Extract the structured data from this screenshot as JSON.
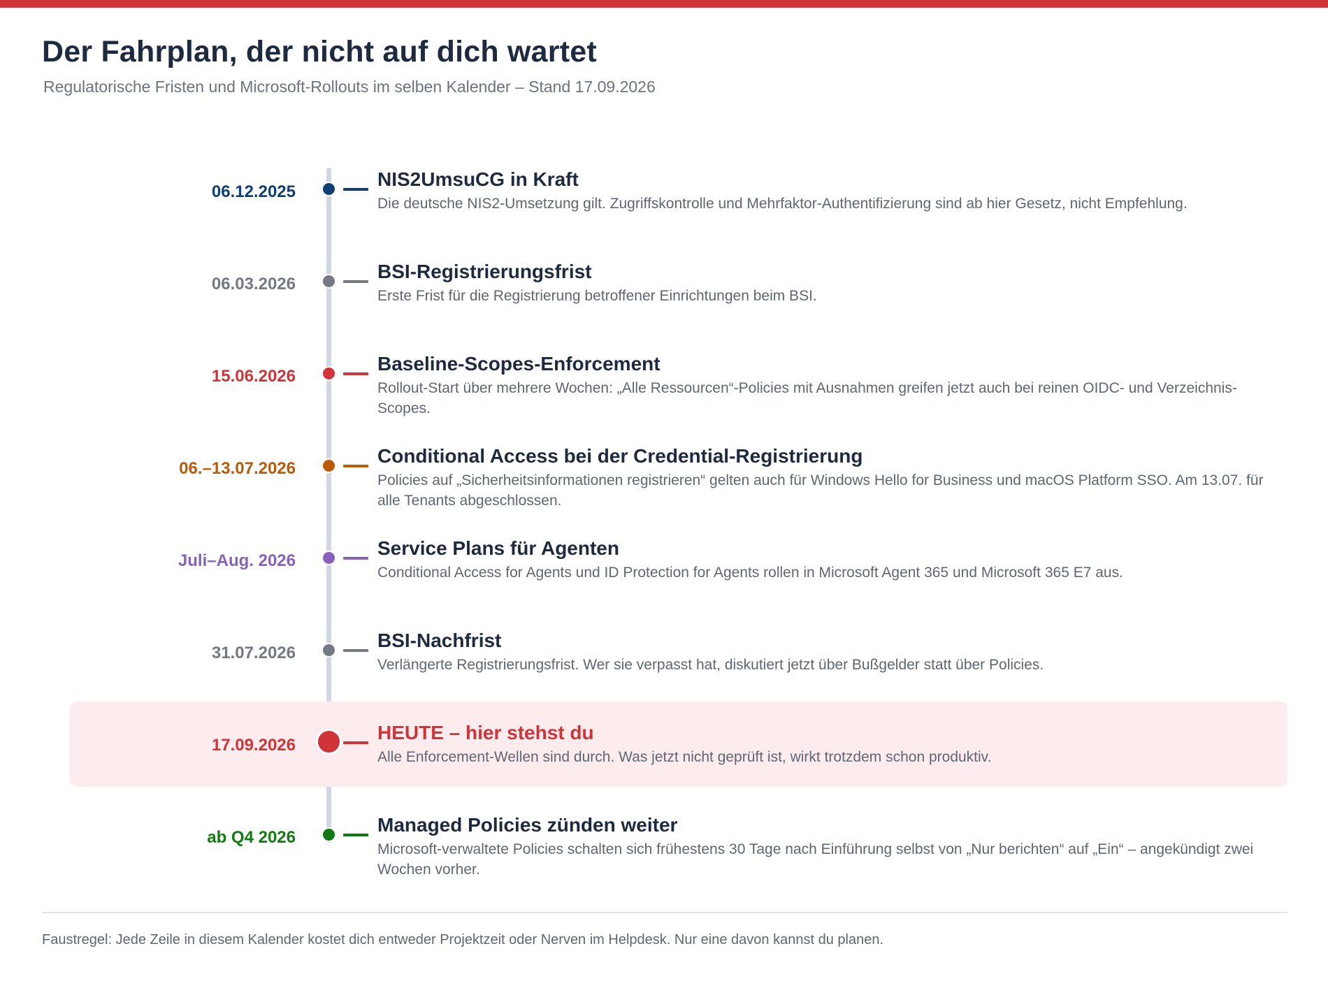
{
  "colors": {
    "accent": "#d13438",
    "navy": "#0f3f73",
    "gray": "#737985",
    "red": "#d13438",
    "orange": "#bc5a07",
    "purple": "#8662bd",
    "green": "#107c10",
    "spine": "#cfd8e4",
    "highlight": "#fceced"
  },
  "header": {
    "title": "Der Fahrplan, der nicht auf dich wartet",
    "subtitle": "Regulatorische Fristen und Microsoft-Rollouts im selben Kalender – Stand 17.09.2026"
  },
  "timeline": [
    {
      "date": "06.12.2025",
      "title": "NIS2UmsuCG in Kraft",
      "description": "Die deutsche NIS2-Umsetzung gilt. Zugriffskontrolle und Mehrfaktor-Authentifizierung sind ab hier Gesetz, nicht Empfehlung.",
      "color": "#0f3f73"
    },
    {
      "date": "06.03.2026",
      "title": "BSI-Registrierungsfrist",
      "description": "Erste Frist für die Registrierung betroffener Einrichtungen beim BSI.",
      "color": "#737985"
    },
    {
      "date": "15.06.2026",
      "title": "Baseline-Scopes-Enforcement",
      "description": "Rollout-Start über mehrere Wochen: „Alle Ressourcen“-Policies mit Ausnahmen greifen jetzt auch bei reinen OIDC- und Verzeichnis-Scopes.",
      "color": "#d13438"
    },
    {
      "date": "06.–13.07.2026",
      "title": "Conditional Access bei der Credential-Registrierung",
      "description": "Policies auf „Sicherheitsinformationen registrieren“ gelten auch für Windows Hello for Business und macOS Platform SSO. Am 13.07. für alle Tenants abgeschlossen.",
      "color": "#bc5a07"
    },
    {
      "date": "Juli–Aug. 2026",
      "title": "Service Plans für Agenten",
      "description": "Conditional Access for Agents und ID Protection for Agents rollen in Microsoft Agent 365 und Microsoft 365 E7 aus.",
      "color": "#8662bd"
    },
    {
      "date": "31.07.2026",
      "title": "BSI-Nachfrist",
      "description": "Verlängerte Registrierungsfrist. Wer sie verpasst hat, diskutiert jetzt über Bußgelder statt über Policies.",
      "color": "#737985"
    },
    {
      "date": "17.09.2026",
      "title": "HEUTE – hier stehst du",
      "description": "Alle Enforcement-Wellen sind durch. Was jetzt nicht geprüft ist, wirkt trotzdem schon produktiv.",
      "color": "#d13438",
      "is_today": true
    },
    {
      "date": "ab Q4 2026",
      "title": "Managed Policies zünden weiter",
      "description": "Microsoft-verwaltete Policies schalten sich frühestens 30 Tage nach Einführung selbst von „Nur berichten“ auf „Ein“ – angekündigt zwei Wochen vorher.",
      "color": "#107c10"
    }
  ],
  "footer": {
    "text": "Faustregel: Jede Zeile in diesem Kalender kostet dich entweder Projektzeit oder Nerven im Helpdesk. Nur eine davon kannst du planen."
  }
}
